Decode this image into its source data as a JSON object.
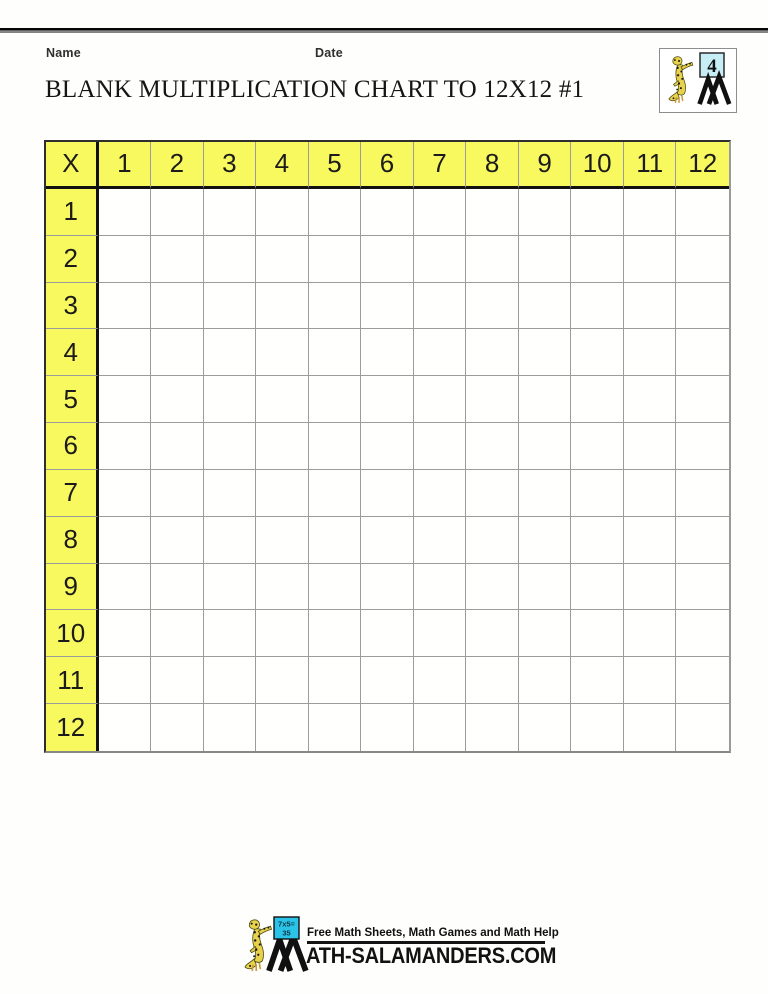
{
  "header": {
    "name_label": "Name",
    "date_label": "Date",
    "title": "BLANK MULTIPLICATION CHART TO 12X12 #1",
    "logo_badge": "4"
  },
  "chart_table": {
    "corner": "X",
    "column_headers": [
      "1",
      "2",
      "3",
      "4",
      "5",
      "6",
      "7",
      "8",
      "9",
      "10",
      "11",
      "12"
    ],
    "row_headers": [
      "1",
      "2",
      "3",
      "4",
      "5",
      "6",
      "7",
      "8",
      "9",
      "10",
      "11",
      "12"
    ],
    "cell_placeholder": ""
  },
  "footer": {
    "tagline": "Free Math Sheets, Math Games and Math Help",
    "wordmark": "ATH-SALAMANDERS.COM",
    "sign_top": "7x5=",
    "sign_bottom": "35"
  },
  "icons": {
    "salamander_icon": "yellow spotted salamander mascot",
    "number_badge_icon": "square sign held by salamander",
    "m_mark_icon": "stylized overlapping letter M"
  },
  "colors": {
    "header_yellow": "#f8f85f",
    "grid_line": "#9c9c9c",
    "border_dark": "#111111",
    "sign_cyan": "#2cc3e8",
    "badge_blue": "#c7edf5",
    "salamander_yellow": "#e9d24b"
  }
}
